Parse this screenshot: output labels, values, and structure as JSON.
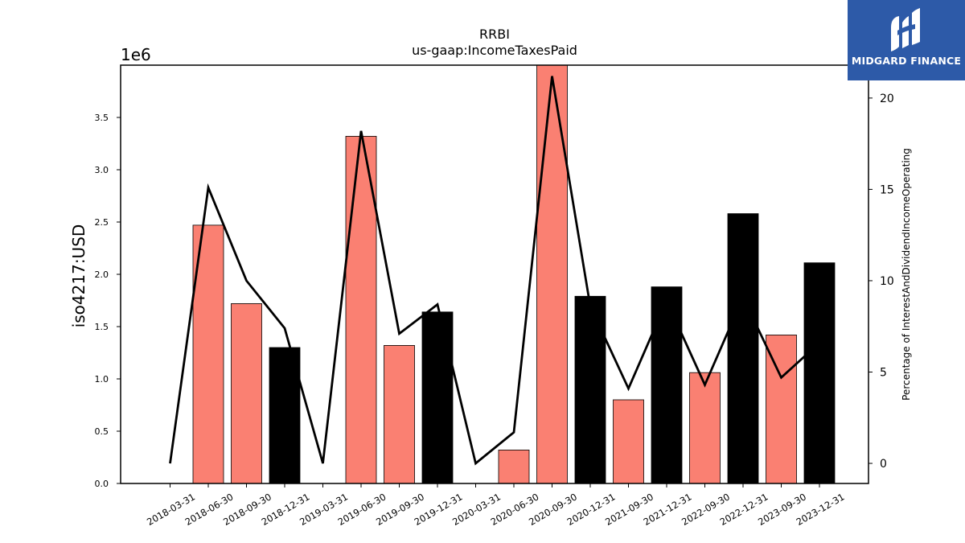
{
  "chart_data": {
    "type": "bar",
    "title": "RRBI",
    "subtitle": "us-gaap:IncomeTaxesPaid",
    "ylabel": "iso4217:USD",
    "y_offset_label": "1e6",
    "y2label": "Percentage of InterestAndDividendIncomeOperating",
    "categories": [
      "2018-03-31",
      "2018-06-30",
      "2018-09-30",
      "2018-12-31",
      "2019-03-31",
      "2019-06-30",
      "2019-09-30",
      "2019-12-31",
      "2020-03-31",
      "2020-06-30",
      "2020-09-30",
      "2020-12-31",
      "2021-09-30",
      "2021-12-31",
      "2022-09-30",
      "2022-12-31",
      "2023-09-30",
      "2023-12-31"
    ],
    "bar_values": [
      0,
      2470000,
      1720000,
      1300000,
      0,
      3320000,
      1320000,
      1640000,
      0,
      320000,
      4010000,
      1790000,
      800000,
      1880000,
      1060000,
      2580000,
      1420000,
      2110000
    ],
    "bar_colors": [
      "#fa8072",
      "#fa8072",
      "#fa8072",
      "#000000",
      "#fa8072",
      "#fa8072",
      "#fa8072",
      "#000000",
      "#fa8072",
      "#fa8072",
      "#fa8072",
      "#000000",
      "#fa8072",
      "#000000",
      "#fa8072",
      "#000000",
      "#fa8072",
      "#000000"
    ],
    "line_values": [
      0,
      15.1,
      10.0,
      7.4,
      0,
      18.2,
      7.1,
      8.7,
      0,
      1.7,
      21.2,
      8.6,
      4.1,
      8.9,
      4.3,
      9.1,
      4.7,
      6.6
    ],
    "ylim": [
      0,
      4000000
    ],
    "y_ticks": [
      0.0,
      0.5,
      1.0,
      1.5,
      2.0,
      2.5,
      3.0,
      3.5
    ],
    "y2lim": [
      -1.1,
      21.8
    ],
    "y2_ticks": [
      0,
      5,
      10,
      15,
      20
    ],
    "line_color": "#000000",
    "grid": false
  },
  "logo": {
    "text": "MIDGARD FINANCE",
    "color": "#2d5aa8"
  }
}
